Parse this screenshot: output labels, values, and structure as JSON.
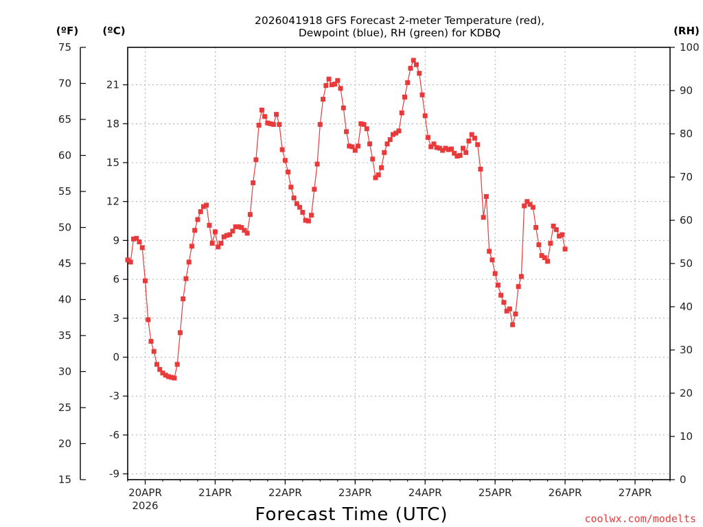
{
  "chart_data": {
    "type": "line",
    "title_line1": "2026041918 GFS Forecast 2-meter Temperature (red),",
    "title_line2": "Dewpoint (blue), RH (green) for KDBQ",
    "xlabel": "Forecast Time (UTC)",
    "credit": "coolwx.com/modelts",
    "unit_left_f": "(ºF)",
    "unit_left_c": "(ºC)",
    "unit_right": "(RH)",
    "x_range_hours": [
      0,
      186
    ],
    "x_ticks": [
      {
        "h": 6,
        "label": "20APR",
        "sub": "2026"
      },
      {
        "h": 30,
        "label": "21APR",
        "sub": ""
      },
      {
        "h": 54,
        "label": "22APR",
        "sub": ""
      },
      {
        "h": 78,
        "label": "23APR",
        "sub": ""
      },
      {
        "h": 102,
        "label": "24APR",
        "sub": ""
      },
      {
        "h": 126,
        "label": "25APR",
        "sub": ""
      },
      {
        "h": 150,
        "label": "26APR",
        "sub": ""
      },
      {
        "h": 174,
        "label": "27APR",
        "sub": ""
      }
    ],
    "y_left_f": {
      "range": [
        15,
        75
      ],
      "ticks": [
        15,
        20,
        25,
        30,
        35,
        40,
        45,
        50,
        55,
        60,
        65,
        70,
        75
      ]
    },
    "y_left_c": {
      "range": [
        -9.444,
        23.889
      ],
      "ticks": [
        -9,
        -6,
        -3,
        0,
        3,
        6,
        9,
        12,
        15,
        18,
        21
      ]
    },
    "y_right_rh": {
      "range": [
        0,
        100
      ],
      "ticks": [
        0,
        10,
        20,
        30,
        40,
        50,
        60,
        70,
        80,
        90,
        100
      ]
    },
    "series": [
      {
        "name": "Temperature",
        "unit": "F",
        "color": "#e83a3a",
        "marker": "filled-square",
        "points": [
          [
            0,
            45.5
          ],
          [
            1,
            45.2
          ],
          [
            2,
            48.4
          ],
          [
            3,
            48.5
          ],
          [
            4,
            48.0
          ],
          [
            5,
            47.2
          ],
          [
            6,
            42.6
          ],
          [
            7,
            37.2
          ],
          [
            8,
            34.2
          ],
          [
            9,
            32.8
          ],
          [
            10,
            31.0
          ],
          [
            11,
            30.3
          ],
          [
            12,
            29.8
          ],
          [
            13,
            29.5
          ],
          [
            14,
            29.3
          ],
          [
            15,
            29.2
          ],
          [
            16,
            29.1
          ],
          [
            17,
            31.0
          ],
          [
            18,
            35.4
          ],
          [
            19,
            40.1
          ],
          [
            20,
            42.9
          ],
          [
            21,
            45.2
          ],
          [
            22,
            47.4
          ],
          [
            23,
            49.6
          ],
          [
            24,
            51.1
          ],
          [
            25,
            52.2
          ],
          [
            26,
            52.9
          ],
          [
            27,
            53.1
          ],
          [
            28,
            50.3
          ],
          [
            29,
            47.8
          ],
          [
            30,
            49.4
          ],
          [
            31,
            47.3
          ],
          [
            32,
            47.8
          ],
          [
            33,
            48.7
          ],
          [
            34,
            48.9
          ],
          [
            35,
            49.0
          ],
          [
            36,
            49.5
          ],
          [
            37,
            50.1
          ],
          [
            38,
            50.1
          ],
          [
            39,
            50.0
          ],
          [
            40,
            49.6
          ],
          [
            41,
            49.2
          ],
          [
            42,
            51.8
          ],
          [
            43,
            56.2
          ],
          [
            44,
            59.4
          ],
          [
            45,
            64.2
          ],
          [
            46,
            66.3
          ],
          [
            47,
            65.4
          ],
          [
            48,
            64.5
          ],
          [
            49,
            64.4
          ],
          [
            50,
            64.3
          ],
          [
            51,
            65.7
          ],
          [
            52,
            64.3
          ],
          [
            53,
            60.8
          ],
          [
            54,
            59.3
          ],
          [
            55,
            57.7
          ],
          [
            56,
            55.6
          ],
          [
            57,
            54.1
          ],
          [
            58,
            53.3
          ],
          [
            59,
            52.8
          ],
          [
            60,
            52.1
          ],
          [
            61,
            51.0
          ],
          [
            62,
            50.9
          ],
          [
            63,
            51.7
          ],
          [
            64,
            55.3
          ],
          [
            65,
            58.8
          ],
          [
            66,
            64.3
          ],
          [
            67,
            67.8
          ],
          [
            68,
            69.7
          ],
          [
            69,
            70.6
          ],
          [
            70,
            69.8
          ],
          [
            71,
            69.9
          ],
          [
            72,
            70.4
          ],
          [
            73,
            69.3
          ],
          [
            74,
            66.6
          ],
          [
            75,
            63.3
          ],
          [
            76,
            61.3
          ],
          [
            77,
            61.2
          ],
          [
            78,
            60.7
          ],
          [
            79,
            61.3
          ],
          [
            80,
            64.4
          ],
          [
            81,
            64.3
          ],
          [
            82,
            63.7
          ],
          [
            83,
            61.6
          ],
          [
            84,
            59.5
          ],
          [
            85,
            56.9
          ],
          [
            86,
            57.3
          ],
          [
            87,
            58.3
          ],
          [
            88,
            60.4
          ],
          [
            89,
            61.6
          ],
          [
            90,
            62.2
          ],
          [
            91,
            62.9
          ],
          [
            92,
            63.1
          ],
          [
            93,
            63.4
          ],
          [
            94,
            65.9
          ],
          [
            95,
            68.1
          ],
          [
            96,
            70.1
          ],
          [
            97,
            72.1
          ],
          [
            98,
            73.2
          ],
          [
            99,
            72.6
          ],
          [
            100,
            71.4
          ],
          [
            101,
            68.4
          ],
          [
            102,
            65.5
          ],
          [
            103,
            62.5
          ],
          [
            104,
            61.2
          ],
          [
            105,
            61.6
          ],
          [
            106,
            61.1
          ],
          [
            107,
            61.0
          ],
          [
            108,
            60.7
          ],
          [
            109,
            61.0
          ],
          [
            110,
            60.8
          ],
          [
            111,
            60.9
          ],
          [
            112,
            60.3
          ],
          [
            113,
            59.9
          ],
          [
            114,
            60.0
          ],
          [
            115,
            61.0
          ],
          [
            116,
            60.4
          ],
          [
            117,
            62.0
          ],
          [
            118,
            62.9
          ],
          [
            119,
            62.4
          ],
          [
            120,
            61.5
          ],
          [
            121,
            58.1
          ],
          [
            122,
            51.4
          ],
          [
            123,
            54.3
          ],
          [
            124,
            46.7
          ],
          [
            125,
            45.5
          ],
          [
            126,
            43.6
          ],
          [
            127,
            42.0
          ],
          [
            128,
            40.6
          ],
          [
            129,
            39.6
          ],
          [
            130,
            38.4
          ],
          [
            131,
            38.7
          ],
          [
            132,
            36.5
          ],
          [
            133,
            38.0
          ],
          [
            134,
            41.8
          ],
          [
            135,
            43.2
          ],
          [
            136,
            53.0
          ],
          [
            137,
            53.6
          ],
          [
            138,
            53.2
          ],
          [
            139,
            52.8
          ],
          [
            140,
            50.0
          ],
          [
            141,
            47.6
          ],
          [
            142,
            46.1
          ],
          [
            143,
            45.8
          ],
          [
            144,
            45.3
          ],
          [
            145,
            47.8
          ],
          [
            146,
            50.2
          ],
          [
            147,
            49.7
          ],
          [
            148,
            48.8
          ],
          [
            149,
            49.0
          ],
          [
            150,
            47.0
          ]
        ]
      },
      {
        "name": "Dewpoint",
        "unit": "F",
        "color": "#2f43d8",
        "marker": "plus",
        "points": []
      },
      {
        "name": "RH",
        "unit": "%",
        "color": "#22cc22",
        "marker": "open-square",
        "points": []
      }
    ]
  }
}
